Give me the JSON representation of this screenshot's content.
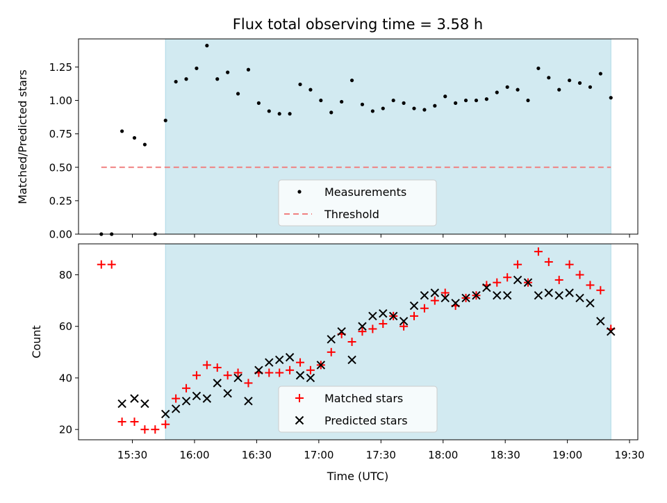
{
  "title": "Flux total observing time = 3.58 h",
  "chart_data": [
    {
      "type": "scatter",
      "panel": "top",
      "ylabel": "Matched/Predicted stars",
      "ylim": [
        0,
        1.46
      ],
      "yticks": [
        "0.00",
        "0.25",
        "0.50",
        "0.75",
        "1.00",
        "1.25"
      ],
      "shaded_x_range": [
        "15:46",
        "19:21"
      ],
      "legend_position": "bottom-center",
      "series": [
        {
          "name": "Measurements",
          "marker": "dot",
          "color": "#000000",
          "x": [
            "15:15",
            "15:20",
            "15:25",
            "15:31",
            "15:36",
            "15:41",
            "15:46",
            "15:51",
            "15:56",
            "16:01",
            "16:06",
            "16:11",
            "16:16",
            "16:21",
            "16:26",
            "16:31",
            "16:36",
            "16:41",
            "16:46",
            "16:51",
            "16:56",
            "17:01",
            "17:06",
            "17:11",
            "17:16",
            "17:21",
            "17:26",
            "17:31",
            "17:36",
            "17:41",
            "17:46",
            "17:51",
            "17:56",
            "18:01",
            "18:06",
            "18:11",
            "18:16",
            "18:21",
            "18:26",
            "18:31",
            "18:36",
            "18:41",
            "18:46",
            "18:51",
            "18:56",
            "19:01",
            "19:06",
            "19:11",
            "19:16",
            "19:21"
          ],
          "y": [
            0.0,
            0.0,
            0.77,
            0.72,
            0.67,
            0.0,
            0.85,
            1.14,
            1.16,
            1.24,
            1.41,
            1.16,
            1.21,
            1.05,
            1.23,
            0.98,
            0.92,
            0.9,
            0.9,
            1.12,
            1.08,
            1.0,
            0.91,
            0.99,
            1.15,
            0.97,
            0.92,
            0.94,
            1.0,
            0.98,
            0.94,
            0.93,
            0.96,
            1.03,
            0.98,
            1.0,
            1.0,
            1.01,
            1.06,
            1.1,
            1.08,
            1.0,
            1.24,
            1.17,
            1.08,
            1.15,
            1.13,
            1.1,
            1.2,
            1.02
          ]
        },
        {
          "name": "Threshold",
          "marker": "dashed-line",
          "color": "#f08080",
          "x": [
            "15:15",
            "19:21"
          ],
          "y": [
            0.5,
            0.5
          ]
        }
      ]
    },
    {
      "type": "scatter",
      "panel": "bottom",
      "xlabel": "Time (UTC)",
      "ylabel": "Count",
      "ylim": [
        16,
        92
      ],
      "yticks": [
        "20",
        "40",
        "60",
        "80"
      ],
      "xticks": [
        "15:30",
        "16:00",
        "16:30",
        "17:00",
        "17:30",
        "18:00",
        "18:30",
        "19:00",
        "19:30"
      ],
      "xlim": [
        "15:04",
        "19:34"
      ],
      "shaded_x_range": [
        "15:46",
        "19:21"
      ],
      "legend_position": "bottom-center",
      "series": [
        {
          "name": "Matched stars",
          "marker": "plus",
          "color": "#ff0000",
          "x": [
            "15:15",
            "15:20",
            "15:25",
            "15:31",
            "15:36",
            "15:41",
            "15:46",
            "15:51",
            "15:56",
            "16:01",
            "16:06",
            "16:11",
            "16:16",
            "16:21",
            "16:26",
            "16:31",
            "16:36",
            "16:41",
            "16:46",
            "16:51",
            "16:56",
            "17:01",
            "17:06",
            "17:11",
            "17:16",
            "17:21",
            "17:26",
            "17:31",
            "17:36",
            "17:41",
            "17:46",
            "17:51",
            "17:56",
            "18:01",
            "18:06",
            "18:11",
            "18:16",
            "18:21",
            "18:26",
            "18:31",
            "18:36",
            "18:41",
            "18:46",
            "18:51",
            "18:56",
            "19:01",
            "19:06",
            "19:11",
            "19:16",
            "19:21"
          ],
          "y": [
            84,
            84,
            23,
            23,
            20,
            20,
            22,
            32,
            36,
            41,
            45,
            44,
            41,
            42,
            38,
            42,
            42,
            42,
            43,
            46,
            43,
            45,
            50,
            57,
            54,
            58,
            59,
            61,
            64,
            60,
            64,
            67,
            70,
            73,
            68,
            71,
            72,
            76,
            77,
            79,
            84,
            77,
            89,
            85,
            78,
            84,
            80,
            76,
            74,
            59
          ]
        },
        {
          "name": "Predicted stars",
          "marker": "x",
          "color": "#000000",
          "x": [
            "15:25",
            "15:31",
            "15:36",
            "15:46",
            "15:51",
            "15:56",
            "16:01",
            "16:06",
            "16:11",
            "16:16",
            "16:21",
            "16:26",
            "16:31",
            "16:36",
            "16:41",
            "16:46",
            "16:51",
            "16:56",
            "17:01",
            "17:06",
            "17:11",
            "17:16",
            "17:21",
            "17:26",
            "17:31",
            "17:36",
            "17:41",
            "17:46",
            "17:51",
            "17:56",
            "18:01",
            "18:06",
            "18:11",
            "18:16",
            "18:21",
            "18:26",
            "18:31",
            "18:36",
            "18:41",
            "18:46",
            "18:51",
            "18:56",
            "19:01",
            "19:06",
            "19:11",
            "19:16",
            "19:21"
          ],
          "y": [
            30,
            32,
            30,
            26,
            28,
            31,
            33,
            32,
            38,
            34,
            40,
            31,
            43,
            46,
            47,
            48,
            41,
            40,
            45,
            55,
            58,
            47,
            60,
            64,
            65,
            64,
            62,
            68,
            72,
            73,
            71,
            69,
            71,
            72,
            75,
            72,
            72,
            78,
            77,
            72,
            73,
            72,
            73,
            71,
            69,
            62,
            58
          ]
        }
      ]
    }
  ]
}
